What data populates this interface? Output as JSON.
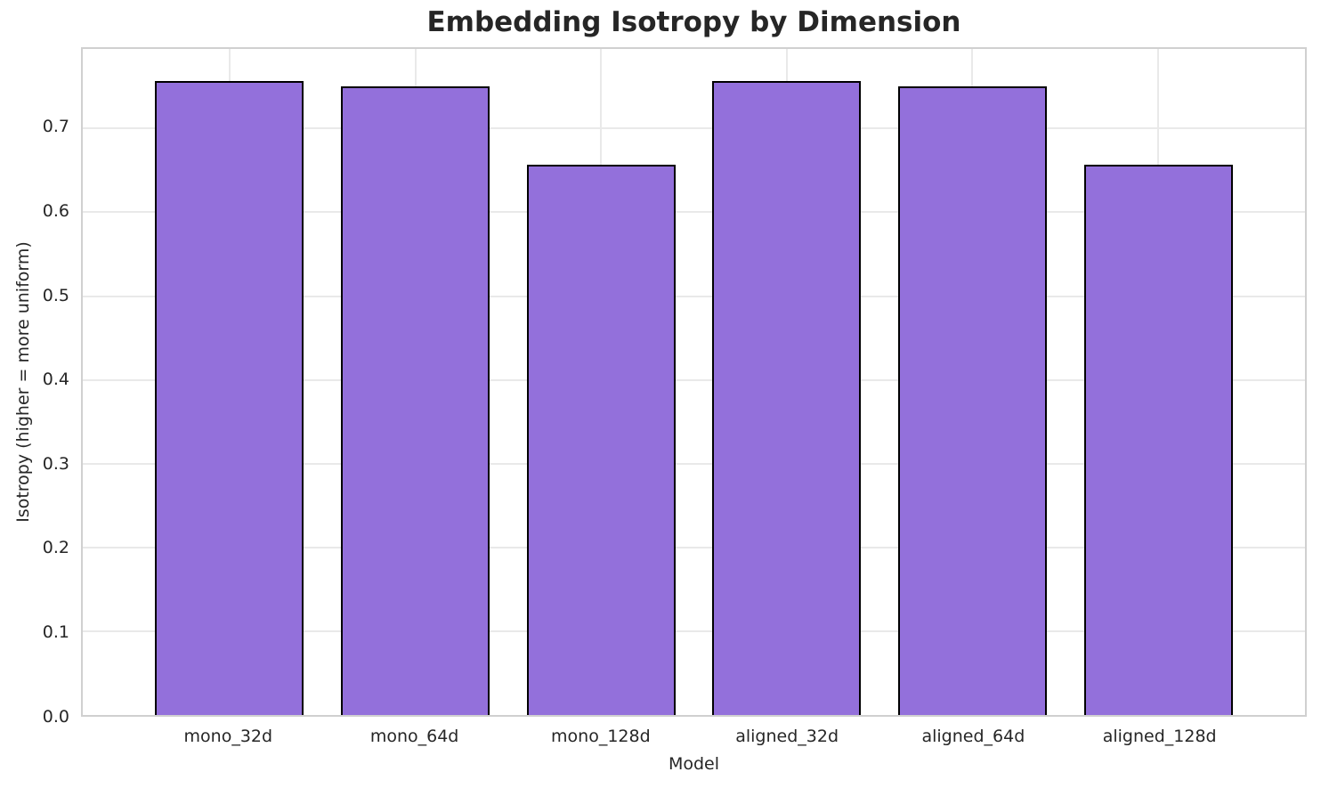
{
  "chart_data": {
    "type": "bar",
    "title": "Embedding Isotropy by Dimension",
    "xlabel": "Model",
    "ylabel": "Isotropy (higher = more uniform)",
    "categories": [
      "mono_32d",
      "mono_64d",
      "mono_128d",
      "aligned_32d",
      "aligned_64d",
      "aligned_128d"
    ],
    "values": [
      0.757,
      0.75,
      0.657,
      0.757,
      0.75,
      0.657
    ],
    "ylim": [
      0.0,
      0.795
    ],
    "yticks": [
      0.0,
      0.1,
      0.2,
      0.3,
      0.4,
      0.5,
      0.6,
      0.7
    ],
    "ytick_labels": [
      "0.0",
      "0.1",
      "0.2",
      "0.3",
      "0.4",
      "0.5",
      "0.6",
      "0.7"
    ],
    "grid": true,
    "legend": false,
    "bar_color": "#9370DB",
    "bar_edge_color": "#000000",
    "bar_width_fraction": 0.8,
    "x_margin_fraction": 0.29
  }
}
